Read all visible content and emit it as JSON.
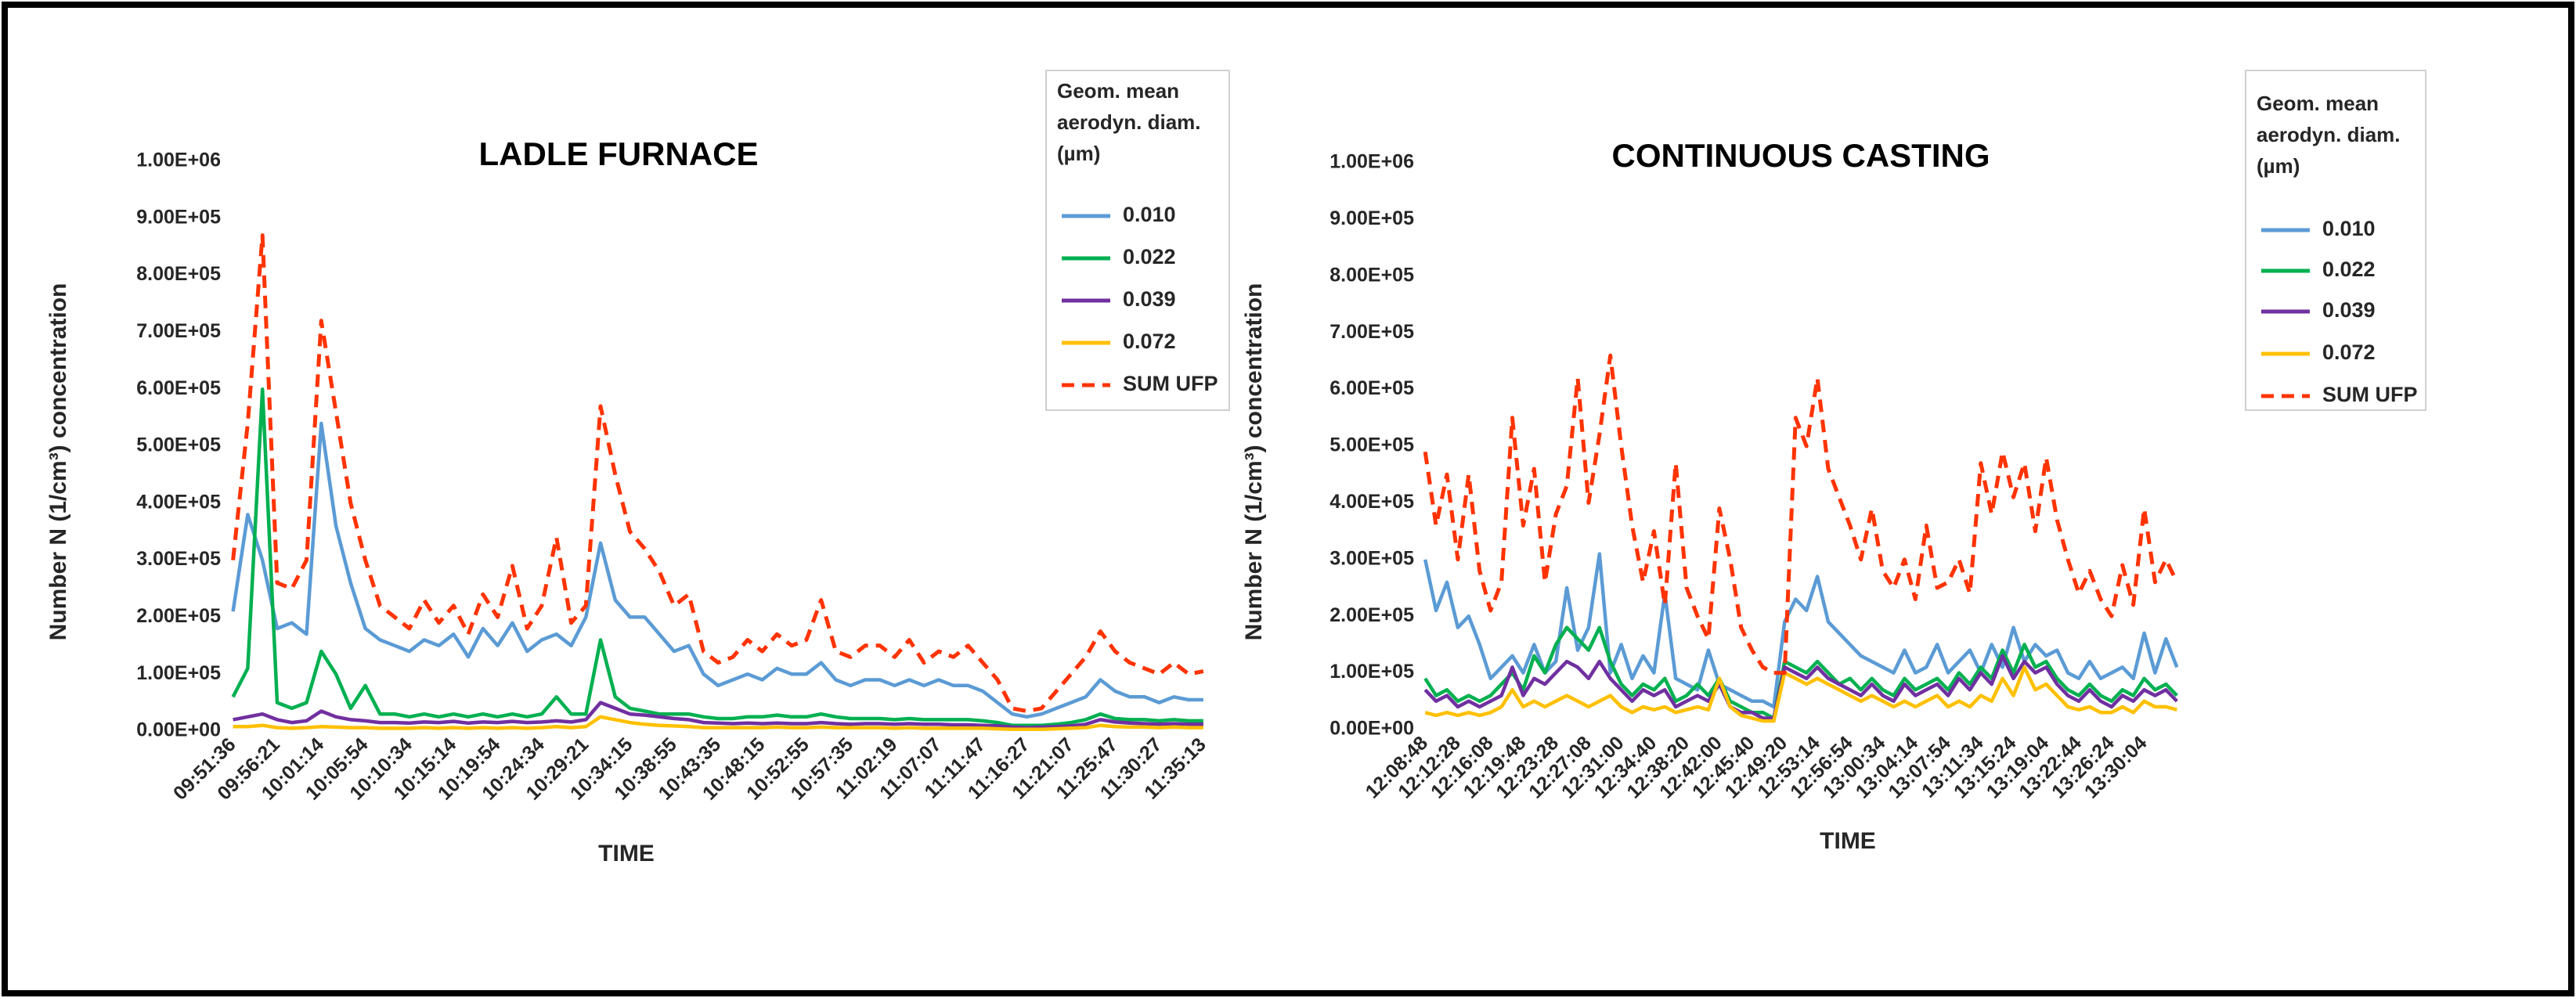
{
  "chart_data": [
    {
      "type": "line",
      "title": "LADLE FURNACE",
      "xlabel": "TIME",
      "ylabel": "Number N (1/cm³) concentration",
      "legend_title": "Geom. mean aerodyn. diam. (µm)",
      "legend": "upper right",
      "categories": [
        "09:51:36",
        null,
        null,
        "09:56:21",
        null,
        null,
        "10:01:14",
        null,
        null,
        "10:05:54",
        null,
        null,
        "10:10:34",
        null,
        null,
        "10:15:14",
        null,
        null,
        "10:19:54",
        null,
        null,
        "10:24:34",
        null,
        null,
        "10:29:21",
        null,
        null,
        "10:34:15",
        null,
        null,
        "10:38:55",
        null,
        null,
        "10:43:35",
        null,
        null,
        "10:48:15",
        null,
        null,
        "10:52:55",
        null,
        null,
        "10:57:35",
        null,
        null,
        "11:02:19",
        null,
        null,
        "11:07:07",
        null,
        null,
        "11:11:47",
        null,
        null,
        "11:16:27",
        null,
        null,
        "11:21:07",
        null,
        null,
        "11:25:47",
        null,
        null,
        "11:30:27",
        null,
        null,
        "11:35:13"
      ],
      "ylim": [
        0,
        1000000
      ],
      "yticks": [
        {
          "value": 0,
          "label": "0.00E+00"
        },
        {
          "value": 100000,
          "label": "1.00E+05"
        },
        {
          "value": 200000,
          "label": "2.00E+05"
        },
        {
          "value": 300000,
          "label": "3.00E+05"
        },
        {
          "value": 400000,
          "label": "4.00E+05"
        },
        {
          "value": 500000,
          "label": "5.00E+05"
        },
        {
          "value": 600000,
          "label": "6.00E+05"
        },
        {
          "value": 700000,
          "label": "7.00E+05"
        },
        {
          "value": 800000,
          "label": "8.00E+05"
        },
        {
          "value": 900000,
          "label": "9.00E+05"
        },
        {
          "value": 1000000,
          "label": "1.00E+06"
        }
      ],
      "series": [
        {
          "name": "0.010",
          "color": "#5b9bd5",
          "values": [
            210000,
            380000,
            300000,
            180000,
            190000,
            170000,
            540000,
            360000,
            260000,
            180000,
            160000,
            150000,
            140000,
            160000,
            150000,
            170000,
            130000,
            180000,
            150000,
            190000,
            140000,
            160000,
            170000,
            150000,
            200000,
            330000,
            230000,
            200000,
            200000,
            170000,
            140000,
            150000,
            100000,
            80000,
            90000,
            100000,
            90000,
            110000,
            100000,
            100000,
            120000,
            90000,
            80000,
            90000,
            90000,
            80000,
            90000,
            80000,
            90000,
            80000,
            80000,
            70000,
            50000,
            30000,
            25000,
            30000,
            40000,
            50000,
            60000,
            90000,
            70000,
            60000,
            60000,
            50000,
            60000,
            55000,
            55000
          ]
        },
        {
          "name": "0.022",
          "color": "#00b050",
          "values": [
            60000,
            110000,
            600000,
            50000,
            40000,
            50000,
            140000,
            100000,
            40000,
            80000,
            30000,
            30000,
            25000,
            30000,
            25000,
            30000,
            25000,
            30000,
            25000,
            30000,
            25000,
            30000,
            60000,
            30000,
            30000,
            160000,
            60000,
            40000,
            35000,
            30000,
            30000,
            30000,
            25000,
            22000,
            22000,
            25000,
            25000,
            28000,
            25000,
            25000,
            30000,
            25000,
            22000,
            22000,
            22000,
            20000,
            22000,
            20000,
            20000,
            20000,
            20000,
            18000,
            15000,
            10000,
            10000,
            10000,
            12000,
            15000,
            20000,
            30000,
            22000,
            20000,
            20000,
            18000,
            20000,
            18000,
            18000
          ]
        },
        {
          "name": "0.039",
          "color": "#7030a0",
          "values": [
            20000,
            25000,
            30000,
            20000,
            15000,
            18000,
            35000,
            25000,
            20000,
            18000,
            15000,
            15000,
            14000,
            16000,
            15000,
            17000,
            14000,
            16000,
            15000,
            17000,
            15000,
            16000,
            18000,
            16000,
            20000,
            50000,
            40000,
            30000,
            28000,
            25000,
            22000,
            20000,
            15000,
            14000,
            13000,
            14000,
            13000,
            14000,
            13000,
            13000,
            15000,
            13000,
            12000,
            13000,
            13000,
            12000,
            13000,
            12000,
            12000,
            11000,
            11000,
            10000,
            9000,
            7000,
            6000,
            7000,
            8000,
            9000,
            12000,
            20000,
            16000,
            14000,
            13000,
            12000,
            13000,
            12000,
            12000
          ]
        },
        {
          "name": "0.072",
          "color": "#ffc000",
          "values": [
            8000,
            8000,
            10000,
            6000,
            5000,
            6000,
            8000,
            7000,
            6000,
            6000,
            5000,
            5000,
            5000,
            6000,
            5000,
            6000,
            5000,
            6000,
            5000,
            6000,
            5000,
            6000,
            8000,
            6000,
            8000,
            25000,
            20000,
            15000,
            12000,
            10000,
            9000,
            8000,
            6000,
            6000,
            6000,
            6000,
            6000,
            7000,
            6000,
            6000,
            7000,
            6000,
            6000,
            6000,
            6000,
            5000,
            6000,
            5000,
            5000,
            5000,
            5000,
            5000,
            4000,
            3000,
            3000,
            3000,
            4000,
            5000,
            6000,
            10000,
            8000,
            7000,
            7000,
            6000,
            7000,
            6000,
            6000
          ]
        },
        {
          "name": "SUM UFP",
          "color": "#ff3300",
          "dashed": true,
          "values": [
            300000,
            540000,
            870000,
            260000,
            250000,
            300000,
            720000,
            560000,
            400000,
            300000,
            220000,
            200000,
            180000,
            230000,
            190000,
            220000,
            170000,
            240000,
            200000,
            290000,
            180000,
            220000,
            340000,
            190000,
            220000,
            570000,
            450000,
            350000,
            320000,
            280000,
            220000,
            240000,
            140000,
            120000,
            130000,
            160000,
            140000,
            170000,
            150000,
            160000,
            230000,
            140000,
            130000,
            150000,
            150000,
            130000,
            160000,
            120000,
            140000,
            130000,
            150000,
            120000,
            90000,
            40000,
            35000,
            40000,
            70000,
            100000,
            130000,
            175000,
            140000,
            120000,
            110000,
            100000,
            120000,
            100000,
            105000
          ]
        }
      ]
    },
    {
      "type": "line",
      "title": "CONTINUOUS CASTING",
      "xlabel": "TIME",
      "ylabel": "Number N (1/cm³) concentration",
      "legend_title": "Geom. mean aerodyn. diam. (µm)",
      "legend": "upper right",
      "categories": [
        "12:08:48",
        null,
        null,
        "12:12:28",
        null,
        null,
        "12:16:08",
        null,
        null,
        "12:19:48",
        null,
        null,
        "12:23:28",
        null,
        null,
        "12:27:08",
        null,
        null,
        "12:31:00",
        null,
        null,
        "12:34:40",
        null,
        null,
        "12:38:20",
        null,
        null,
        "12:42:00",
        null,
        null,
        "12:45:40",
        null,
        null,
        "12:49:20",
        null,
        null,
        "12:53:14",
        null,
        null,
        "12:56:54",
        null,
        null,
        "13:00:34",
        null,
        null,
        "13:04:14",
        null,
        null,
        "13:07:54",
        null,
        null,
        "13:11:34",
        null,
        null,
        "13:15:24",
        null,
        null,
        "13:19:04",
        null,
        null,
        "13:22:44",
        null,
        null,
        "13:26:24",
        null,
        null,
        "13:30:04",
        null,
        null,
        null
      ],
      "ylim": [
        0,
        1000000
      ],
      "yticks": [
        {
          "value": 0,
          "label": "0.00E+00"
        },
        {
          "value": 100000,
          "label": "1.00E+05"
        },
        {
          "value": 200000,
          "label": "2.00E+05"
        },
        {
          "value": 300000,
          "label": "3.00E+05"
        },
        {
          "value": 400000,
          "label": "4.00E+05"
        },
        {
          "value": 500000,
          "label": "5.00E+05"
        },
        {
          "value": 600000,
          "label": "6.00E+05"
        },
        {
          "value": 700000,
          "label": "7.00E+05"
        },
        {
          "value": 800000,
          "label": "8.00E+05"
        },
        {
          "value": 900000,
          "label": "9.00E+05"
        },
        {
          "value": 1000000,
          "label": "1.00E+06"
        }
      ],
      "series": [
        {
          "name": "0.010",
          "color": "#5b9bd5",
          "values": [
            300000,
            210000,
            260000,
            180000,
            200000,
            150000,
            90000,
            110000,
            130000,
            100000,
            150000,
            100000,
            120000,
            250000,
            140000,
            180000,
            310000,
            100000,
            150000,
            90000,
            130000,
            100000,
            240000,
            90000,
            80000,
            70000,
            140000,
            80000,
            70000,
            60000,
            50000,
            50000,
            40000,
            190000,
            230000,
            210000,
            270000,
            190000,
            170000,
            150000,
            130000,
            120000,
            110000,
            100000,
            140000,
            100000,
            110000,
            150000,
            100000,
            120000,
            140000,
            100000,
            150000,
            110000,
            180000,
            120000,
            150000,
            130000,
            140000,
            100000,
            90000,
            120000,
            90000,
            100000,
            110000,
            90000,
            170000,
            100000,
            160000,
            110000
          ]
        },
        {
          "name": "0.022",
          "color": "#00b050",
          "values": [
            90000,
            60000,
            70000,
            50000,
            60000,
            50000,
            60000,
            80000,
            100000,
            70000,
            130000,
            100000,
            150000,
            180000,
            160000,
            140000,
            180000,
            120000,
            80000,
            60000,
            80000,
            70000,
            90000,
            50000,
            60000,
            80000,
            60000,
            90000,
            50000,
            40000,
            30000,
            30000,
            20000,
            120000,
            110000,
            100000,
            120000,
            100000,
            80000,
            90000,
            70000,
            90000,
            70000,
            60000,
            90000,
            70000,
            80000,
            90000,
            70000,
            100000,
            80000,
            110000,
            90000,
            140000,
            100000,
            150000,
            110000,
            120000,
            90000,
            70000,
            60000,
            80000,
            60000,
            50000,
            70000,
            60000,
            90000,
            70000,
            80000,
            60000
          ]
        },
        {
          "name": "0.039",
          "color": "#7030a0",
          "values": [
            70000,
            50000,
            60000,
            40000,
            50000,
            40000,
            50000,
            60000,
            110000,
            60000,
            90000,
            80000,
            100000,
            120000,
            110000,
            90000,
            120000,
            90000,
            70000,
            50000,
            70000,
            60000,
            70000,
            40000,
            50000,
            60000,
            50000,
            80000,
            40000,
            30000,
            30000,
            20000,
            20000,
            110000,
            100000,
            90000,
            110000,
            90000,
            80000,
            70000,
            60000,
            80000,
            60000,
            50000,
            80000,
            60000,
            70000,
            80000,
            60000,
            90000,
            70000,
            100000,
            80000,
            130000,
            90000,
            120000,
            100000,
            110000,
            80000,
            60000,
            50000,
            70000,
            50000,
            40000,
            60000,
            50000,
            70000,
            60000,
            70000,
            50000
          ]
        },
        {
          "name": "0.072",
          "color": "#ffc000",
          "values": [
            30000,
            25000,
            30000,
            25000,
            30000,
            25000,
            30000,
            40000,
            70000,
            40000,
            50000,
            40000,
            50000,
            60000,
            50000,
            40000,
            50000,
            60000,
            40000,
            30000,
            40000,
            35000,
            40000,
            30000,
            35000,
            40000,
            35000,
            90000,
            40000,
            25000,
            20000,
            15000,
            15000,
            100000,
            90000,
            80000,
            90000,
            80000,
            70000,
            60000,
            50000,
            60000,
            50000,
            40000,
            50000,
            40000,
            50000,
            60000,
            40000,
            50000,
            40000,
            60000,
            50000,
            90000,
            60000,
            110000,
            70000,
            80000,
            60000,
            40000,
            35000,
            40000,
            30000,
            30000,
            40000,
            30000,
            50000,
            40000,
            40000,
            35000
          ]
        },
        {
          "name": "SUM UFP",
          "color": "#ff3300",
          "dashed": true,
          "values": [
            490000,
            360000,
            450000,
            300000,
            450000,
            280000,
            210000,
            260000,
            550000,
            360000,
            460000,
            260000,
            380000,
            430000,
            620000,
            400000,
            520000,
            660000,
            500000,
            360000,
            260000,
            350000,
            220000,
            470000,
            250000,
            200000,
            160000,
            390000,
            300000,
            180000,
            140000,
            110000,
            100000,
            100000,
            550000,
            500000,
            620000,
            460000,
            410000,
            360000,
            300000,
            390000,
            280000,
            250000,
            300000,
            230000,
            360000,
            250000,
            260000,
            300000,
            240000,
            470000,
            380000,
            490000,
            410000,
            470000,
            350000,
            480000,
            370000,
            300000,
            240000,
            280000,
            230000,
            200000,
            290000,
            220000,
            390000,
            260000,
            300000,
            260000
          ]
        }
      ]
    }
  ]
}
